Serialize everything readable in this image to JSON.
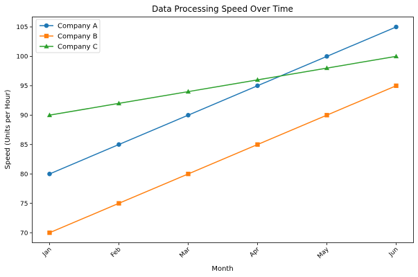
{
  "chart_data": {
    "type": "line",
    "title": "Data Processing Speed Over Time",
    "xlabel": "Month",
    "ylabel": "Speed (Units per Hour)",
    "categories": [
      "Jan",
      "Feb",
      "Mar",
      "Apr",
      "May",
      "Jun"
    ],
    "ylim": [
      68.3,
      106.7
    ],
    "yticks": [
      70,
      75,
      80,
      85,
      90,
      95,
      100,
      105
    ],
    "grid": false,
    "legend_position": "top-left",
    "series": [
      {
        "name": "Company A",
        "color": "#1f77b4",
        "marker": "circle",
        "values": [
          80,
          85,
          90,
          95,
          100,
          105
        ]
      },
      {
        "name": "Company B",
        "color": "#ff7f0e",
        "marker": "square",
        "values": [
          70,
          75,
          80,
          85,
          90,
          95
        ]
      },
      {
        "name": "Company C",
        "color": "#2ca02c",
        "marker": "triangle",
        "values": [
          90,
          92,
          94,
          96,
          98,
          100
        ]
      }
    ]
  }
}
